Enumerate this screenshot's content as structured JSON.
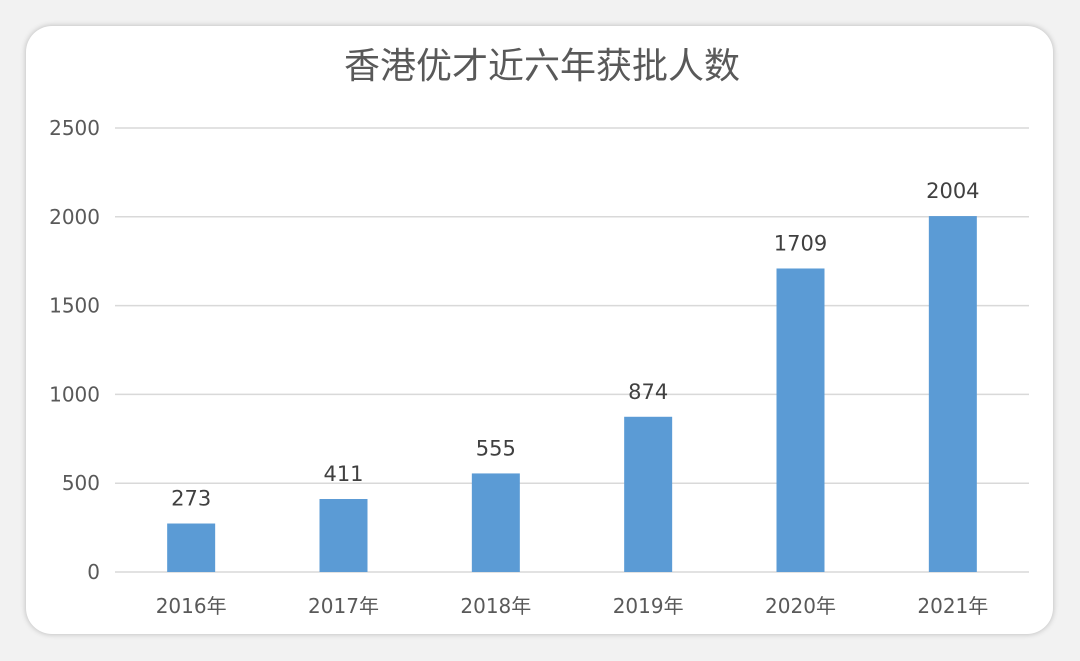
{
  "chart_data": {
    "type": "bar",
    "title": "香港优才近六年获批人数",
    "xlabel": "",
    "ylabel": "",
    "categories": [
      "2016年",
      "2017年",
      "2018年",
      "2019年",
      "2020年",
      "2021年"
    ],
    "values": [
      273,
      411,
      555,
      874,
      1709,
      2004
    ],
    "yticks": [
      "0",
      "500",
      "1000",
      "1500",
      "2000",
      "2500"
    ],
    "ylim": [
      0,
      2500
    ],
    "grid": true,
    "legend": "none",
    "colors": {
      "bar": "#5b9bd5"
    }
  }
}
